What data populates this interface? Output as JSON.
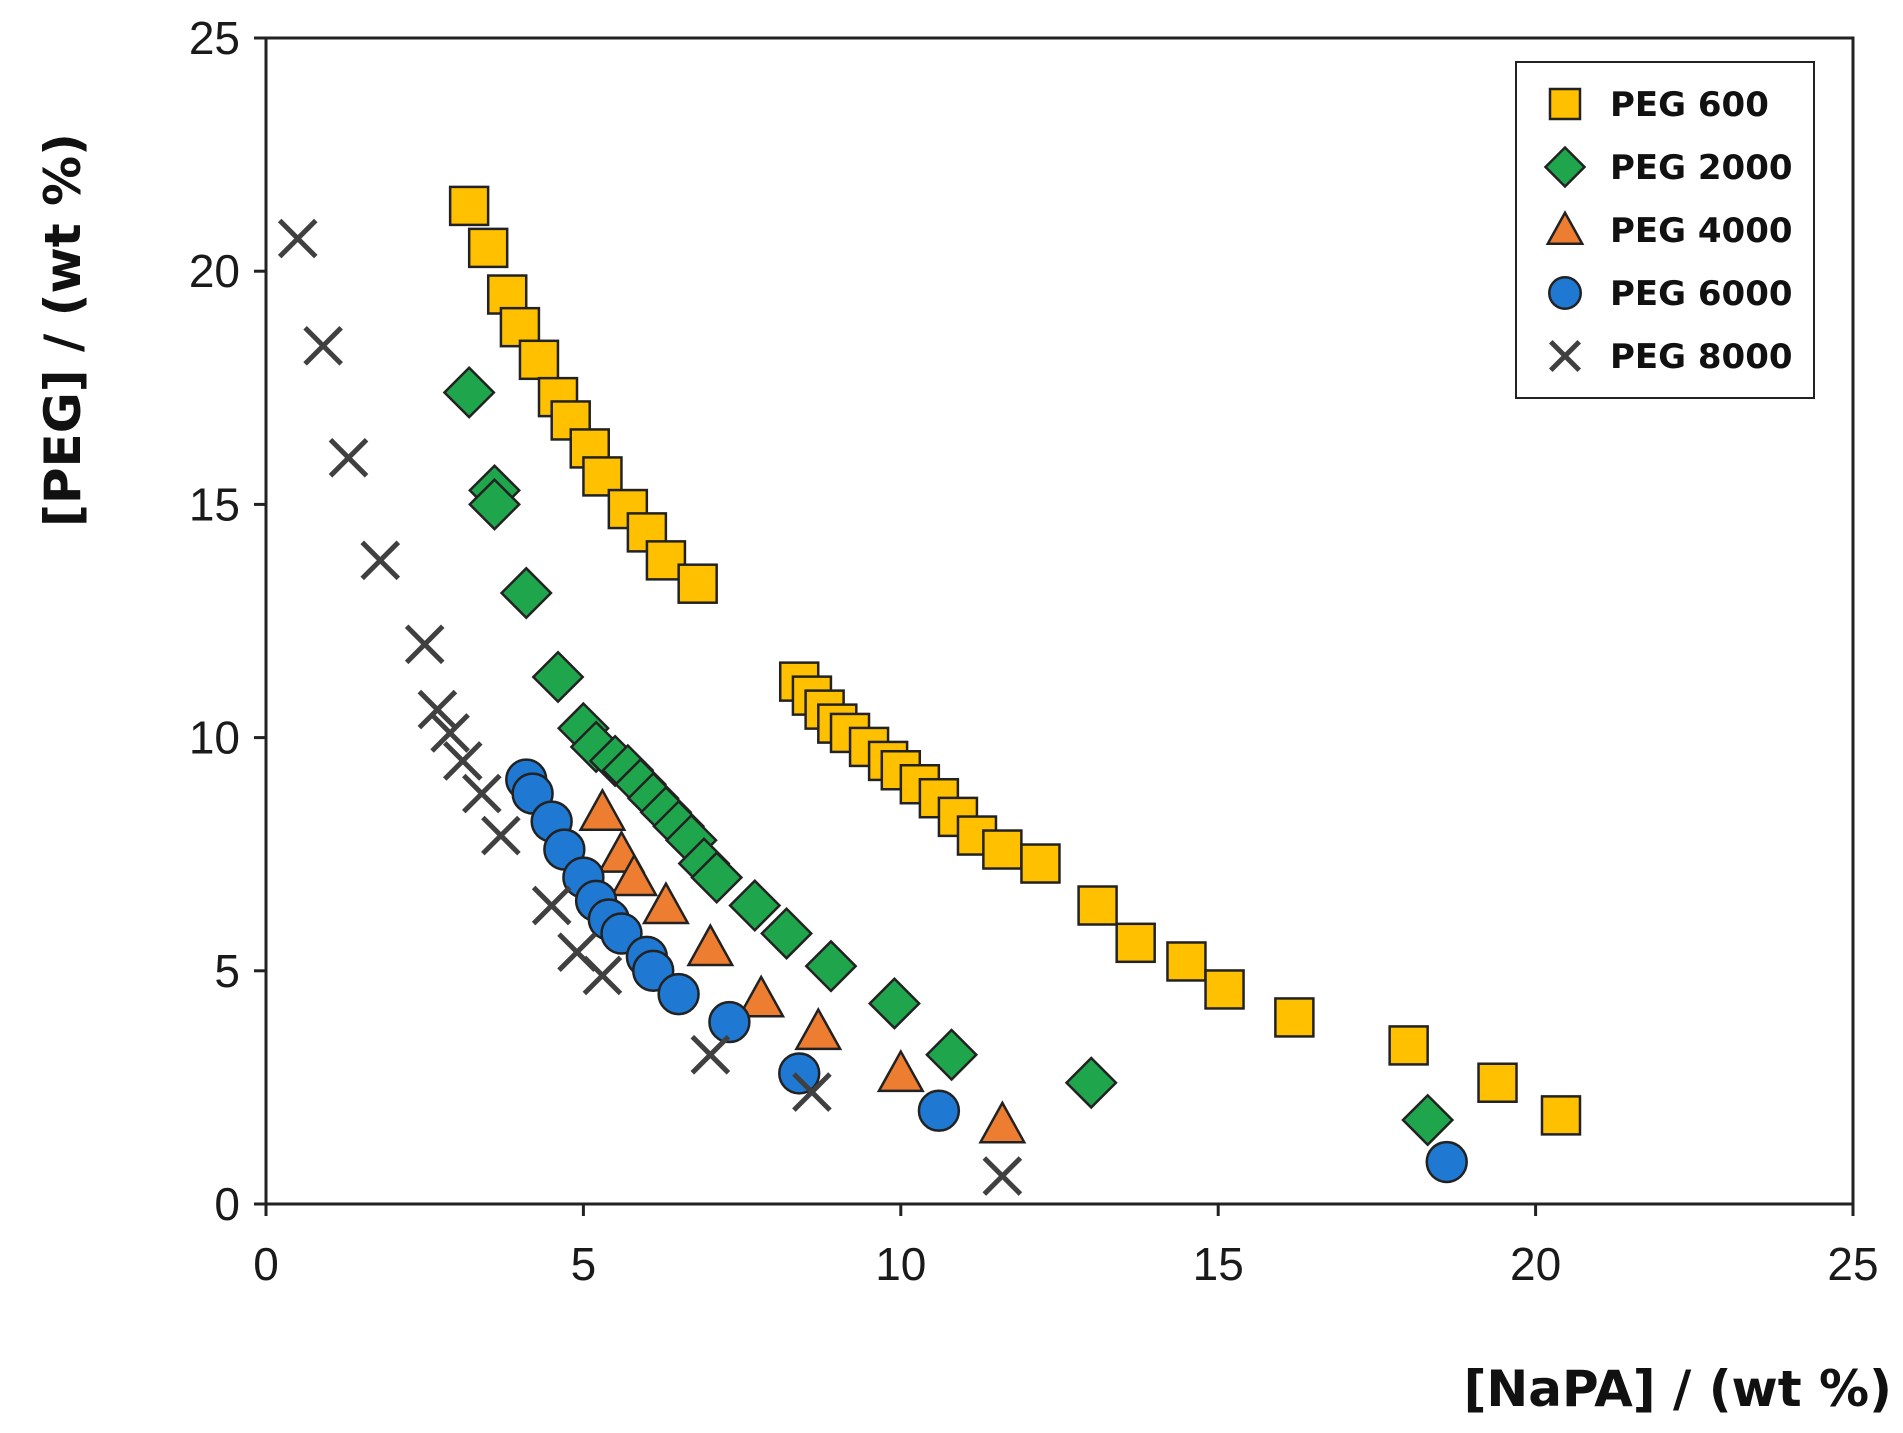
{
  "chart_data": {
    "type": "scatter",
    "title": "",
    "xlabel": "[NaPA] / (wt %)",
    "ylabel": "[PEG] / (wt %)",
    "xlim": [
      0,
      25
    ],
    "ylim": [
      0,
      25
    ],
    "xticks": [
      0,
      5,
      10,
      15,
      20,
      25
    ],
    "yticks": [
      0,
      5,
      10,
      15,
      20,
      25
    ],
    "xtick_labels": [
      "0",
      "5",
      "10",
      "15",
      "20",
      "25"
    ],
    "ytick_labels": [
      "0",
      "5",
      "10",
      "15",
      "20",
      "25"
    ],
    "grid": false,
    "legend_position": "top-right",
    "series": [
      {
        "name": "PEG 600",
        "marker": "square",
        "color": "#FFC000",
        "points": [
          [
            3.2,
            21.4
          ],
          [
            3.5,
            20.5
          ],
          [
            3.8,
            19.5
          ],
          [
            4.0,
            18.8
          ],
          [
            4.3,
            18.1
          ],
          [
            4.6,
            17.3
          ],
          [
            4.8,
            16.8
          ],
          [
            5.1,
            16.2
          ],
          [
            5.3,
            15.6
          ],
          [
            5.7,
            14.9
          ],
          [
            6.0,
            14.4
          ],
          [
            6.3,
            13.8
          ],
          [
            6.8,
            13.3
          ],
          [
            8.4,
            11.2
          ],
          [
            8.6,
            10.9
          ],
          [
            8.8,
            10.6
          ],
          [
            9.0,
            10.3
          ],
          [
            9.2,
            10.1
          ],
          [
            9.5,
            9.8
          ],
          [
            9.8,
            9.5
          ],
          [
            10.0,
            9.3
          ],
          [
            10.3,
            9.0
          ],
          [
            10.6,
            8.7
          ],
          [
            10.9,
            8.3
          ],
          [
            11.2,
            7.9
          ],
          [
            11.6,
            7.6
          ],
          [
            12.2,
            7.3
          ],
          [
            13.1,
            6.4
          ],
          [
            13.7,
            5.6
          ],
          [
            14.5,
            5.2
          ],
          [
            15.1,
            4.6
          ],
          [
            16.2,
            4.0
          ],
          [
            18.0,
            3.4
          ],
          [
            19.4,
            2.6
          ],
          [
            20.4,
            1.9
          ]
        ]
      },
      {
        "name": "PEG 2000",
        "marker": "diamond",
        "color": "#1FA64C",
        "points": [
          [
            3.2,
            17.4
          ],
          [
            3.6,
            15.3
          ],
          [
            3.6,
            15.0
          ],
          [
            4.1,
            13.1
          ],
          [
            4.6,
            11.3
          ],
          [
            5.0,
            10.2
          ],
          [
            5.2,
            9.8
          ],
          [
            5.5,
            9.5
          ],
          [
            5.7,
            9.3
          ],
          [
            5.9,
            9.0
          ],
          [
            6.1,
            8.7
          ],
          [
            6.3,
            8.4
          ],
          [
            6.5,
            8.1
          ],
          [
            6.7,
            7.8
          ],
          [
            6.9,
            7.3
          ],
          [
            7.1,
            7.0
          ],
          [
            7.7,
            6.4
          ],
          [
            8.2,
            5.8
          ],
          [
            8.9,
            5.1
          ],
          [
            9.9,
            4.3
          ],
          [
            10.8,
            3.2
          ],
          [
            13.0,
            2.6
          ],
          [
            18.3,
            1.8
          ]
        ]
      },
      {
        "name": "PEG 4000",
        "marker": "triangle",
        "color": "#ED7D31",
        "points": [
          [
            5.3,
            8.4
          ],
          [
            5.6,
            7.5
          ],
          [
            5.8,
            7.0
          ],
          [
            6.3,
            6.4
          ],
          [
            7.0,
            5.5
          ],
          [
            7.8,
            4.4
          ],
          [
            8.7,
            3.7
          ],
          [
            10.0,
            2.8
          ],
          [
            11.6,
            1.7
          ]
        ]
      },
      {
        "name": "PEG 6000",
        "marker": "circle",
        "color": "#1F78D1",
        "points": [
          [
            4.1,
            9.1
          ],
          [
            4.2,
            8.8
          ],
          [
            4.5,
            8.2
          ],
          [
            4.7,
            7.6
          ],
          [
            5.0,
            7.0
          ],
          [
            5.2,
            6.5
          ],
          [
            5.4,
            6.1
          ],
          [
            5.6,
            5.8
          ],
          [
            6.0,
            5.3
          ],
          [
            6.1,
            5.0
          ],
          [
            6.5,
            4.5
          ],
          [
            7.3,
            3.9
          ],
          [
            8.4,
            2.8
          ],
          [
            10.6,
            2.0
          ],
          [
            18.6,
            0.9
          ]
        ]
      },
      {
        "name": "PEG 8000",
        "marker": "x",
        "color": "#404040",
        "points": [
          [
            0.5,
            20.7
          ],
          [
            0.9,
            18.4
          ],
          [
            1.3,
            16.0
          ],
          [
            1.8,
            13.8
          ],
          [
            2.5,
            12.0
          ],
          [
            2.7,
            10.6
          ],
          [
            2.9,
            10.1
          ],
          [
            3.1,
            9.5
          ],
          [
            3.4,
            8.8
          ],
          [
            3.7,
            7.9
          ],
          [
            4.5,
            6.4
          ],
          [
            4.9,
            5.4
          ],
          [
            5.3,
            4.9
          ],
          [
            7.0,
            3.2
          ],
          [
            8.6,
            2.4
          ],
          [
            11.6,
            0.6
          ]
        ]
      }
    ]
  }
}
